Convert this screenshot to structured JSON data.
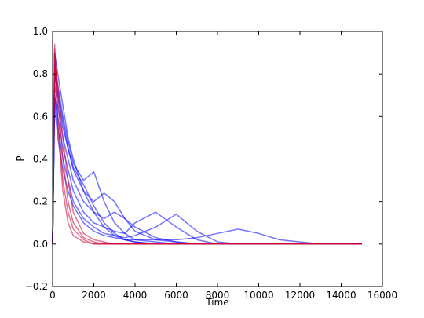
{
  "chart_data": {
    "type": "line",
    "xlabel": "Time",
    "ylabel": "P",
    "x": [
      0,
      100,
      250,
      500,
      750,
      1000,
      1500,
      2000,
      2500,
      3000,
      3500,
      4000,
      5000,
      6000,
      7000,
      8000,
      9000,
      10000,
      11000,
      12000,
      13000,
      14000,
      15000
    ],
    "series": [
      {
        "color": "#0000ff",
        "values": [
          0,
          0.65,
          0.5,
          0.35,
          0.25,
          0.18,
          0.1,
          0.06,
          0.04,
          0.03,
          0.02,
          0.02,
          0.02,
          0.02,
          0.03,
          0.05,
          0.07,
          0.05,
          0.02,
          0.01,
          0,
          0,
          0
        ]
      },
      {
        "color": "#0000ff",
        "values": [
          0,
          0.7,
          0.55,
          0.4,
          0.3,
          0.2,
          0.12,
          0.08,
          0.05,
          0.04,
          0.03,
          0.04,
          0.08,
          0.14,
          0.06,
          0.01,
          0,
          0,
          0,
          0,
          0,
          0,
          0
        ]
      },
      {
        "color": "#0000ff",
        "values": [
          0,
          0.7,
          0.6,
          0.45,
          0.35,
          0.25,
          0.15,
          0.1,
          0.08,
          0.06,
          0.05,
          0.1,
          0.15,
          0.08,
          0.02,
          0,
          0,
          0,
          0,
          0,
          0,
          0,
          0
        ]
      },
      {
        "color": "#0000ff",
        "values": [
          0,
          0.75,
          0.65,
          0.5,
          0.4,
          0.3,
          0.2,
          0.15,
          0.12,
          0.15,
          0.12,
          0.08,
          0.03,
          0.01,
          0,
          0,
          0,
          0,
          0,
          0,
          0,
          0,
          0
        ]
      },
      {
        "color": "#0000ff",
        "values": [
          0,
          0.8,
          0.7,
          0.55,
          0.45,
          0.35,
          0.25,
          0.2,
          0.24,
          0.2,
          0.12,
          0.06,
          0.02,
          0.01,
          0,
          0,
          0,
          0,
          0,
          0,
          0,
          0,
          0
        ]
      },
      {
        "color": "#0000ff",
        "values": [
          0,
          0.85,
          0.75,
          0.6,
          0.48,
          0.38,
          0.3,
          0.34,
          0.2,
          0.1,
          0.05,
          0.02,
          0.01,
          0,
          0,
          0,
          0,
          0,
          0,
          0,
          0,
          0,
          0
        ]
      },
      {
        "color": "#0000ff",
        "values": [
          0,
          0.8,
          0.72,
          0.58,
          0.45,
          0.36,
          0.28,
          0.18,
          0.1,
          0.05,
          0.02,
          0.01,
          0,
          0,
          0,
          0,
          0,
          0,
          0,
          0,
          0,
          0,
          0
        ]
      },
      {
        "color": "#0000ff",
        "values": [
          0,
          0.9,
          0.8,
          0.65,
          0.5,
          0.4,
          0.25,
          0.15,
          0.08,
          0.04,
          0.02,
          0.01,
          0,
          0,
          0,
          0,
          0,
          0,
          0,
          0,
          0,
          0,
          0
        ]
      },
      {
        "color": "#cc0033",
        "values": [
          0,
          0.85,
          0.75,
          0.5,
          0.3,
          0.15,
          0.05,
          0.02,
          0.01,
          0,
          0,
          0,
          0,
          0,
          0,
          0,
          0,
          0,
          0,
          0,
          0,
          0,
          0
        ]
      },
      {
        "color": "#cc0033",
        "values": [
          0,
          0.9,
          0.7,
          0.4,
          0.2,
          0.1,
          0.03,
          0.01,
          0,
          0,
          0,
          0,
          0,
          0,
          0,
          0,
          0,
          0,
          0,
          0,
          0,
          0,
          0
        ]
      },
      {
        "color": "#cc0033",
        "values": [
          0,
          0.92,
          0.6,
          0.3,
          0.15,
          0.07,
          0.02,
          0,
          0,
          0,
          0,
          0,
          0,
          0,
          0,
          0,
          0,
          0,
          0,
          0,
          0,
          0,
          0
        ]
      },
      {
        "color": "#cc0033",
        "values": [
          0,
          0.94,
          0.55,
          0.25,
          0.1,
          0.04,
          0.01,
          0,
          0,
          0,
          0,
          0,
          0,
          0,
          0,
          0,
          0,
          0,
          0,
          0,
          0,
          0,
          0
        ]
      }
    ],
    "xlim": [
      0,
      16000
    ],
    "xticks": [
      0,
      2000,
      4000,
      6000,
      8000,
      10000,
      12000,
      14000,
      16000
    ],
    "ylim": [
      -0.2,
      1.0
    ],
    "yticks": [
      {
        "value": -0.2,
        "label": "−0.2"
      },
      {
        "value": 0,
        "label": "0.0"
      },
      0.2,
      0.4,
      0.6,
      0.8,
      {
        "value": 1,
        "label": "1.0"
      }
    ],
    "grid": false
  }
}
